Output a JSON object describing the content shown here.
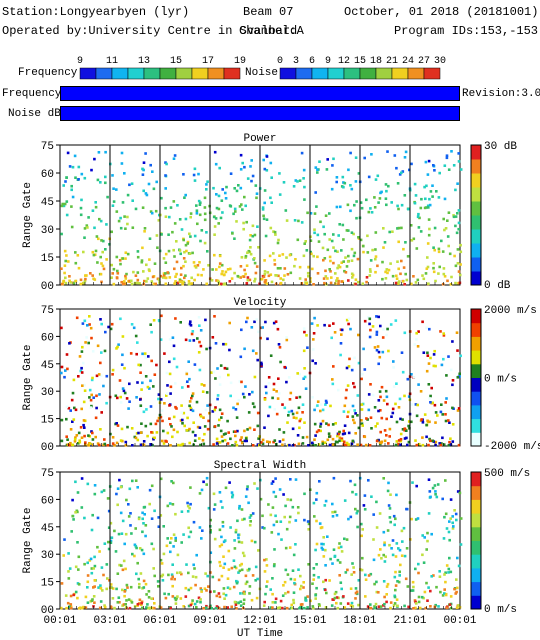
{
  "header": {
    "station": "Station:Longyearbyen (lyr)",
    "operator": "Operated by:University Centre in Svalbard",
    "beam": "Beam 07",
    "channel": "Channel:A",
    "date": "October, 01 2018 (20181001)",
    "program": "Program IDs:153,-153"
  },
  "scales": {
    "frequency": {
      "label": "Frequency",
      "ticks": [
        "9",
        "11",
        "13",
        "15",
        "17",
        "19"
      ],
      "colors": [
        "#1010e0",
        "#1e6cf0",
        "#10b4f0",
        "#20d0d0",
        "#2cc080",
        "#40b040",
        "#a0d040",
        "#f0d020",
        "#f09020",
        "#e03020"
      ]
    },
    "noise": {
      "label": "Noise",
      "ticks": [
        "0",
        "3",
        "6",
        "9",
        "12",
        "15",
        "18",
        "21",
        "24",
        "27",
        "30"
      ],
      "colors": [
        "#1010e0",
        "#1e6cf0",
        "#10b4f0",
        "#20d0d0",
        "#2cc080",
        "#40b040",
        "#a0d040",
        "#f0d020",
        "#f09020",
        "#e03020"
      ]
    }
  },
  "bars": {
    "frequency_label": "Frequency",
    "noise_label": "Noise dB",
    "revision": "Revision:3.0"
  },
  "colors": {
    "pw_stops": [
      "#0000d0",
      "#1060f0",
      "#10b0f0",
      "#20d0c0",
      "#30c070",
      "#60c040",
      "#c0e040",
      "#f0d020",
      "#f08020",
      "#e02020"
    ],
    "vel_stops": [
      "#e8ffff",
      "#30e0e0",
      "#10a0f0",
      "#1050f0",
      "#0000c0",
      "#208020",
      "#e0e000",
      "#f0a000",
      "#f04000",
      "#d00000"
    ]
  },
  "chart_data": [
    {
      "type": "heatmap",
      "title": "Power",
      "ylabel": "Range Gate",
      "xlabel": "UT Time",
      "ylim": [
        0,
        75
      ],
      "yticks": [
        "75",
        "60",
        "45",
        "30",
        "15",
        "00"
      ],
      "x_ticks": [
        "00:01",
        "03:01",
        "06:01",
        "09:01",
        "12:01",
        "15:01",
        "18:01",
        "21:01",
        "00:01"
      ],
      "colorbar": {
        "max_label": "30 dB",
        "min_label": "0 dB",
        "range": [
          0,
          30
        ]
      }
    },
    {
      "type": "heatmap",
      "title": "Velocity",
      "ylabel": "Range Gate",
      "ylim": [
        0,
        75
      ],
      "yticks": [
        "75",
        "60",
        "45",
        "30",
        "15",
        "00"
      ],
      "x_ticks": [
        "00:01",
        "03:01",
        "06:01",
        "09:01",
        "12:01",
        "15:01",
        "18:01",
        "21:01",
        "00:01"
      ],
      "colorbar": {
        "max_label": "2000 m/s",
        "mid_label": "0 m/s",
        "min_label": "-2000 m/s",
        "range": [
          -2000,
          2000
        ]
      }
    },
    {
      "type": "heatmap",
      "title": "Spectral Width",
      "ylabel": "Range Gate",
      "xlabel": "UT Time",
      "ylim": [
        0,
        75
      ],
      "yticks": [
        "75",
        "60",
        "45",
        "30",
        "15",
        "00"
      ],
      "x_ticks": [
        "00:01",
        "03:01",
        "06:01",
        "09:01",
        "12:01",
        "15:01",
        "18:01",
        "21:01",
        "00:01"
      ],
      "colorbar": {
        "max_label": "500 m/s",
        "min_label": "0 m/s",
        "range": [
          0,
          500
        ]
      }
    }
  ]
}
